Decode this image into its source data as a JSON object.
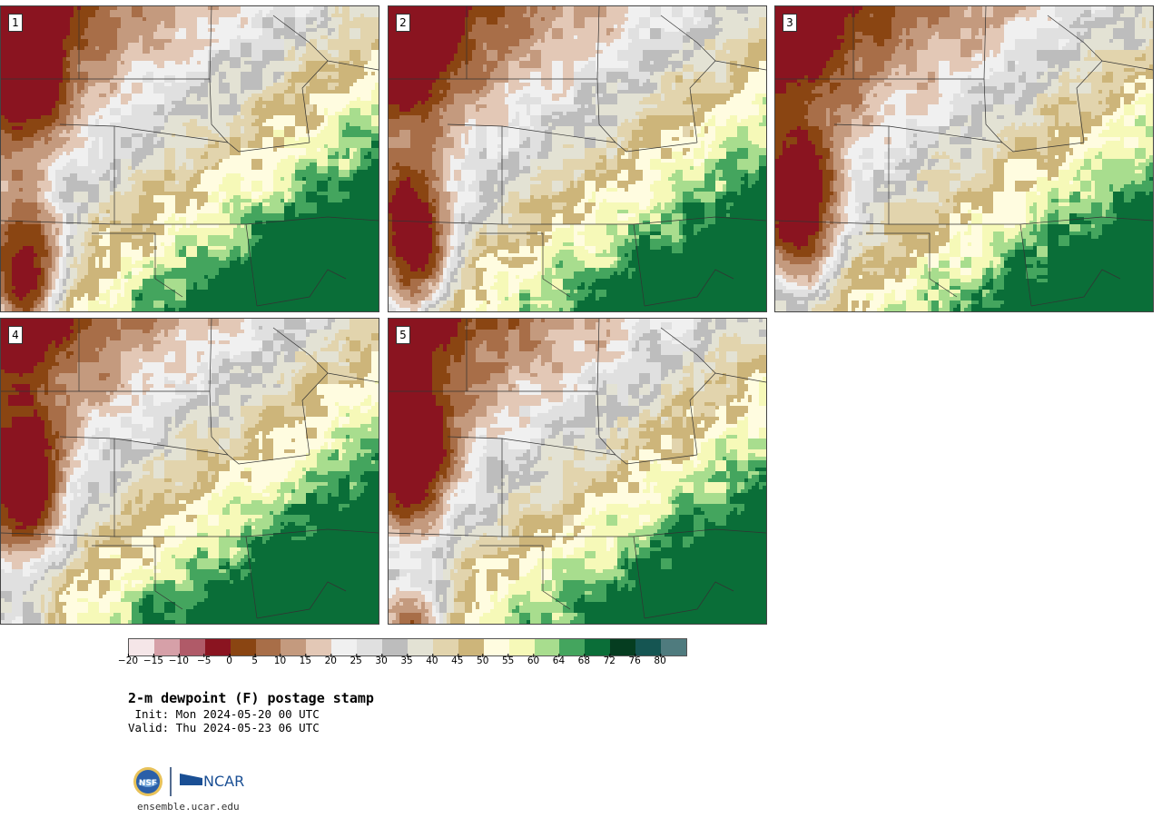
{
  "panels": [
    {
      "label": "1",
      "variant": 0
    },
    {
      "label": "2",
      "variant": 1
    },
    {
      "label": "3",
      "variant": 2
    },
    {
      "label": "4",
      "variant": 3
    },
    {
      "label": "5",
      "variant": 4
    }
  ],
  "colorbar": {
    "colors": [
      "#f5e6e8",
      "#d6a0a8",
      "#b05a68",
      "#8a1420",
      "#8a4512",
      "#a86e48",
      "#c49a7e",
      "#e3c8b6",
      "#f0f0f0",
      "#e0e0e0",
      "#bdbdbd",
      "#e3e2d4",
      "#e2d4ad",
      "#cdb57a",
      "#fffce0",
      "#f6f9b8",
      "#a8dd8e",
      "#44a55e",
      "#0a6e38",
      "#053d20",
      "#155552",
      "#4f7b7e"
    ],
    "tick_labels": [
      "−20",
      "−15",
      "−10",
      "−5",
      "0",
      "5",
      "10",
      "15",
      "20",
      "25",
      "30",
      "35",
      "40",
      "45",
      "50",
      "55",
      "60",
      "64",
      "68",
      "72",
      "76",
      "80"
    ]
  },
  "title": "2-m dewpoint (F) postage stamp",
  "init": " Init: Mon 2024-05-20 00 UTC",
  "valid": "Valid: Thu 2024-05-23 06 UTC",
  "logos": {
    "nsf": "NSF",
    "ncar": "NCAR"
  },
  "site": "ensemble.ucar.edu"
}
